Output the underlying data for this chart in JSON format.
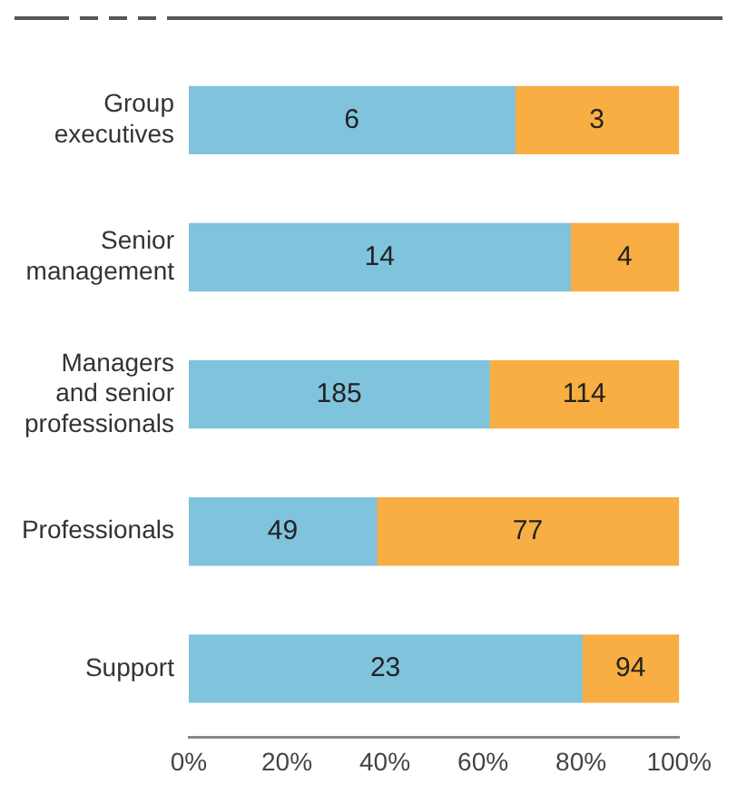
{
  "chart_data": {
    "type": "bar",
    "orientation": "horizontal",
    "stacked": true,
    "categories": [
      "Group executives",
      "Senior management",
      "Managers and senior professionals",
      "Professionals",
      "Support"
    ],
    "series": [
      {
        "color": "#80c3dd",
        "values": [
          66.5,
          77.8,
          61.3,
          38.3,
          80.2
        ]
      },
      {
        "color": "#f8ae42",
        "values": [
          33.5,
          22.2,
          38.7,
          61.7,
          19.8
        ]
      }
    ],
    "annotations": [
      "6",
      "3",
      "14",
      "4",
      "185",
      "114",
      "49",
      "77",
      "23",
      "94"
    ],
    "xlim": [
      0,
      100
    ],
    "xticks": [
      {
        "value": 0,
        "label": "0%"
      },
      {
        "value": 20,
        "label": "20%"
      },
      {
        "value": 40,
        "label": "40%"
      },
      {
        "value": 60,
        "label": "60%"
      },
      {
        "value": 80,
        "label": "80%"
      },
      {
        "value": 100,
        "label": "100%"
      }
    ],
    "grid": false,
    "legend": false
  }
}
